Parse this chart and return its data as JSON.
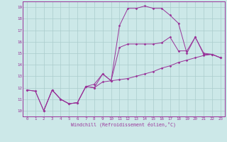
{
  "xlabel": "Windchill (Refroidissement éolien,°C)",
  "bg_color": "#cce8e8",
  "line_color": "#993399",
  "grid_color": "#aacccc",
  "xlim": [
    -0.5,
    23.5
  ],
  "ylim": [
    9.5,
    19.5
  ],
  "xticks": [
    0,
    1,
    2,
    3,
    4,
    5,
    6,
    7,
    8,
    9,
    10,
    11,
    12,
    13,
    14,
    15,
    16,
    17,
    18,
    19,
    20,
    21,
    22,
    23
  ],
  "yticks": [
    10,
    11,
    12,
    13,
    14,
    15,
    16,
    17,
    18,
    19
  ],
  "line1_x": [
    0,
    1,
    2,
    3,
    4,
    5,
    6,
    7,
    8,
    9,
    10,
    11,
    12,
    13,
    14,
    15,
    16,
    17,
    18,
    19,
    20,
    21,
    22,
    23
  ],
  "line1_y": [
    11.8,
    11.7,
    10.0,
    11.8,
    11.0,
    10.6,
    10.7,
    12.1,
    12.0,
    13.2,
    12.6,
    17.4,
    18.9,
    18.9,
    19.1,
    18.9,
    18.9,
    18.3,
    17.6,
    15.0,
    16.4,
    14.9,
    14.9,
    14.6
  ],
  "line2_x": [
    0,
    1,
    2,
    3,
    4,
    5,
    6,
    7,
    8,
    9,
    10,
    11,
    12,
    13,
    14,
    15,
    16,
    17,
    18,
    19,
    20,
    21,
    22,
    23
  ],
  "line2_y": [
    11.8,
    11.7,
    10.0,
    11.8,
    11.0,
    10.6,
    10.7,
    12.1,
    12.0,
    12.5,
    12.6,
    12.7,
    12.8,
    13.0,
    13.2,
    13.4,
    13.7,
    13.9,
    14.2,
    14.4,
    14.6,
    14.8,
    14.9,
    14.6
  ],
  "line3_x": [
    2,
    3,
    4,
    5,
    6,
    7,
    8,
    9,
    10,
    11,
    12,
    13,
    14,
    15,
    16,
    17,
    18,
    19,
    20,
    21,
    22,
    23
  ],
  "line3_y": [
    10.0,
    11.8,
    11.0,
    10.6,
    10.7,
    12.1,
    12.3,
    13.2,
    12.6,
    15.5,
    15.8,
    15.8,
    15.8,
    15.8,
    15.9,
    16.4,
    15.2,
    15.2,
    16.4,
    15.0,
    14.9,
    14.6
  ]
}
